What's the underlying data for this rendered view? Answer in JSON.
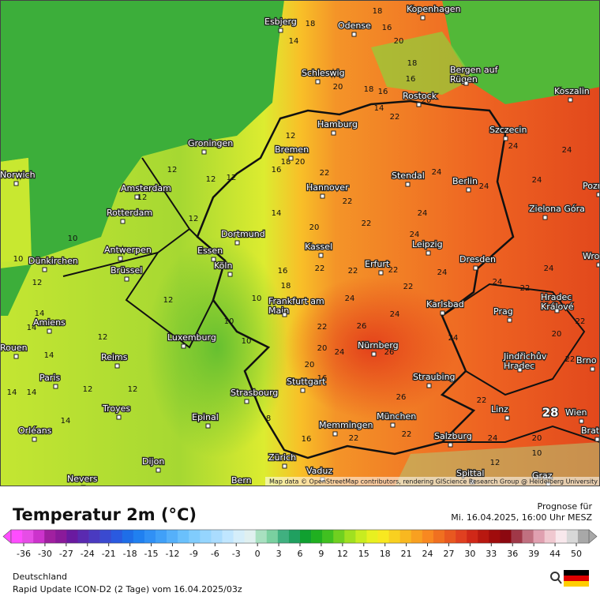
{
  "map": {
    "cities": [
      "Esbjerg",
      "Odense",
      "Kopenhagen",
      "Schleswig",
      "Bergen auf Rügen",
      "Rostock",
      "Koszalin",
      "Hamburg",
      "Szczecin",
      "Groningen",
      "Bremen",
      "Norwich",
      "Amsterdam",
      "Hannover",
      "Stendal",
      "Berlin",
      "Zielona Góra",
      "Poznań",
      "Rotterdam",
      "Dortmund",
      "Antwerpen",
      "Essen",
      "Kassel",
      "Leipzig",
      "Dünkirchen",
      "Köln",
      "Erfurt",
      "Dresden",
      "Wrocław",
      "Brüssel",
      "Frankfurt am Main",
      "Karlsbad",
      "Hradec Králové",
      "Prag",
      "Amiens",
      "Luxemburg",
      "Nürnberg",
      "Jindřichův Hradec",
      "Brno",
      "Rouen",
      "Reims",
      "Paris",
      "Stuttgart",
      "Straubing",
      "Strasbourg",
      "Troyes",
      "Linz",
      "München",
      "Wien",
      "Epinal",
      "Bratislava",
      "Memmingen",
      "Orléans",
      "Salzburg",
      "Zürich",
      "Vaduz",
      "Dijon",
      "Nevers",
      "Bern",
      "Spittal",
      "Graz"
    ],
    "temperatures": [
      14,
      18,
      18,
      16,
      20,
      18,
      16,
      20,
      18,
      16,
      14,
      22,
      20,
      12,
      18,
      20,
      16,
      12,
      12,
      12,
      12,
      14,
      22,
      22,
      24,
      24,
      24,
      24,
      24,
      12,
      10,
      10,
      12,
      20,
      22,
      24,
      24,
      22,
      16,
      18,
      22,
      22,
      22,
      24,
      24,
      22,
      24,
      12,
      10,
      14,
      14,
      12,
      10,
      10,
      24,
      26,
      26,
      24,
      20,
      24,
      22,
      24,
      22,
      20,
      22,
      14,
      12,
      14,
      14,
      12,
      14,
      16,
      20,
      26,
      22,
      22,
      22,
      24,
      20,
      28,
      12,
      10,
      16,
      8
    ],
    "attribution": "Map data © OpenStreetMap contributors, rendering GIScience Research Group @ Heidelberg University"
  },
  "legend": {
    "title": "Temperatur 2m (°C)",
    "forecast_label": "Prognose für",
    "forecast_time": "Mi. 16.04.2025, 16:00 Uhr MESZ",
    "ticks": [
      -36,
      -30,
      -27,
      -24,
      -21,
      -18,
      -15,
      -12,
      -9,
      -6,
      -3,
      0,
      3,
      6,
      9,
      12,
      15,
      18,
      21,
      24,
      27,
      30,
      33,
      36,
      39,
      44,
      50
    ],
    "colors": [
      "#ff4dff",
      "#e64de6",
      "#cc33cc",
      "#a020a0",
      "#8a1a9a",
      "#6a1aa0",
      "#5a2ab0",
      "#4a3ac0",
      "#3a4ad0",
      "#2a5ae0",
      "#1e6ee8",
      "#2080f0",
      "#3090f5",
      "#40a0f8",
      "#55b0fa",
      "#6ac0fc",
      "#80ccfd",
      "#95d5fe",
      "#aadcfe",
      "#c0e6ff",
      "#d5eefa",
      "#e0f0f0",
      "#a8e0c0",
      "#7ad0a0",
      "#40b080",
      "#20a060",
      "#10a030",
      "#20b020",
      "#40c020",
      "#70d020",
      "#a0e020",
      "#c8ec20",
      "#e8f020",
      "#f8e820",
      "#f8d020",
      "#f8b820",
      "#f8a020",
      "#f88820",
      "#f07020",
      "#e85820",
      "#e04020",
      "#d02818",
      "#b81810",
      "#a00c0c",
      "#8c0810",
      "#a03848",
      "#c07080",
      "#e0a0b0",
      "#f0c8d0",
      "#f8e8ec",
      "#d8d8d8",
      "#a8a8a8"
    ]
  },
  "footer": {
    "region": "Deutschland",
    "model": "Rapid Update ICON-D2 (2 Tage) vom 16.04.2025/03z"
  }
}
